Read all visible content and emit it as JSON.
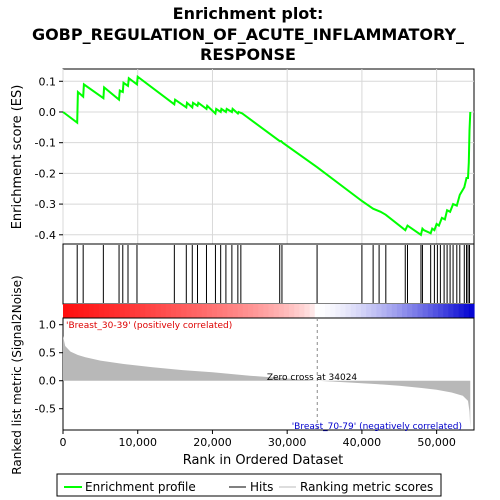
{
  "chart_data": {
    "type": "line",
    "title": "Enrichment plot:\nGOBP_REGULATION_OF_ACUTE_INFLAMMATORY_\nRESPONSE",
    "title_lines": [
      "Enrichment plot:",
      "GOBP_REGULATION_OF_ACUTE_INFLAMMATORY_",
      "RESPONSE"
    ],
    "xlabel": "Rank in Ordered Dataset",
    "xlim": [
      0,
      55000
    ],
    "x_ticks": [
      0,
      10000,
      20000,
      30000,
      40000,
      50000
    ],
    "x_tick_labels": [
      "0",
      "10,000",
      "20,000",
      "30,000",
      "40,000",
      "50,000"
    ],
    "es_panel": {
      "ylabel": "Enrichment score (ES)",
      "ylim": [
        -0.43,
        0.14
      ],
      "y_ticks": [
        -0.4,
        -0.3,
        -0.2,
        -0.1,
        0.0,
        0.1
      ],
      "y_tick_labels": [
        "-0.4",
        "-0.3",
        "-0.2",
        "-0.1",
        "0.0",
        "0.1"
      ],
      "series": [
        {
          "name": "Enrichment profile",
          "color": "#00ff00",
          "x": [
            0,
            1900,
            2000,
            2700,
            2800,
            5400,
            5500,
            7500,
            7600,
            8000,
            8100,
            8700,
            8800,
            9900,
            10000,
            14900,
            15000,
            16500,
            16600,
            17300,
            17400,
            18000,
            18100,
            19200,
            19300,
            20400,
            20500,
            21100,
            21200,
            21800,
            21900,
            22600,
            22700,
            23400,
            23500,
            24000,
            29000,
            29200,
            29400,
            34000,
            40000,
            41500,
            42500,
            43200,
            45800,
            46100,
            47900,
            48100,
            48300,
            49200,
            49400,
            49700,
            50000,
            50300,
            50700,
            51100,
            51400,
            51800,
            52200,
            52700,
            53100,
            53700,
            54000,
            54200,
            54300,
            54400,
            54500
          ],
          "y": [
            0.0,
            -0.035,
            0.065,
            0.05,
            0.09,
            0.045,
            0.08,
            0.04,
            0.07,
            0.065,
            0.095,
            0.085,
            0.11,
            0.09,
            0.115,
            0.025,
            0.04,
            0.015,
            0.03,
            0.015,
            0.03,
            0.02,
            0.03,
            0.01,
            0.02,
            -0.005,
            0.01,
            0.0,
            0.01,
            0.0,
            0.01,
            0.0,
            0.01,
            -0.005,
            0.0,
            -0.005,
            -0.095,
            -0.095,
            -0.1,
            -0.18,
            -0.29,
            -0.315,
            -0.325,
            -0.335,
            -0.385,
            -0.37,
            -0.4,
            -0.38,
            -0.385,
            -0.395,
            -0.38,
            -0.385,
            -0.365,
            -0.37,
            -0.345,
            -0.35,
            -0.32,
            -0.325,
            -0.3,
            -0.305,
            -0.27,
            -0.245,
            -0.215,
            -0.215,
            -0.165,
            -0.06,
            0.0
          ]
        }
      ]
    },
    "hits": [
      1900,
      2700,
      5400,
      7500,
      8000,
      8700,
      9900,
      14900,
      16500,
      17300,
      18000,
      19200,
      20400,
      21100,
      21800,
      22600,
      23400,
      23800,
      29000,
      29300,
      34000,
      40000,
      41500,
      42300,
      43200,
      45800,
      46100,
      47900,
      48100,
      49200,
      49700,
      50100,
      50500,
      51000,
      51400,
      51800,
      52200,
      52700,
      53100,
      53700,
      54000,
      54200,
      54400
    ],
    "hits_legend": "Hits",
    "ranking_panel": {
      "ylabel": "Ranked list metric (Signal2Noise)",
      "ylim": [
        -0.88,
        1.12
      ],
      "y_ticks": [
        -0.5,
        0.0,
        0.5,
        1.0
      ],
      "y_tick_labels": [
        "-0.5",
        "0.0",
        "0.5",
        "1.0"
      ],
      "metric_x": [
        0,
        300,
        1000,
        2000,
        3000,
        5000,
        8000,
        12000,
        16000,
        20000,
        25000,
        30000,
        34024,
        38000,
        42000,
        45000,
        48000,
        50000,
        52000,
        53500,
        54200,
        54400,
        54500
      ],
      "metric_y": [
        0.8,
        0.62,
        0.52,
        0.46,
        0.42,
        0.36,
        0.3,
        0.24,
        0.19,
        0.15,
        0.09,
        0.04,
        0.0,
        -0.03,
        -0.06,
        -0.09,
        -0.13,
        -0.16,
        -0.21,
        -0.27,
        -0.36,
        -0.55,
        -0.85
      ],
      "zero_cross_label": "Zero cross at 34024",
      "zero_cross_x": 34024,
      "positive_label": "'Breast_30-39' (positively correlated)",
      "negative_label": "'Breast_70-79' (negatively correlated)",
      "positive_label_color": "#dd0000",
      "negative_label_color": "#0000cc",
      "fill_color": "#b8b8b8",
      "legend_label": "Ranking metric scores"
    },
    "legend": {
      "placement": "bottom",
      "entries": [
        "Enrichment profile",
        "Hits",
        "Ranking metric scores"
      ]
    }
  }
}
